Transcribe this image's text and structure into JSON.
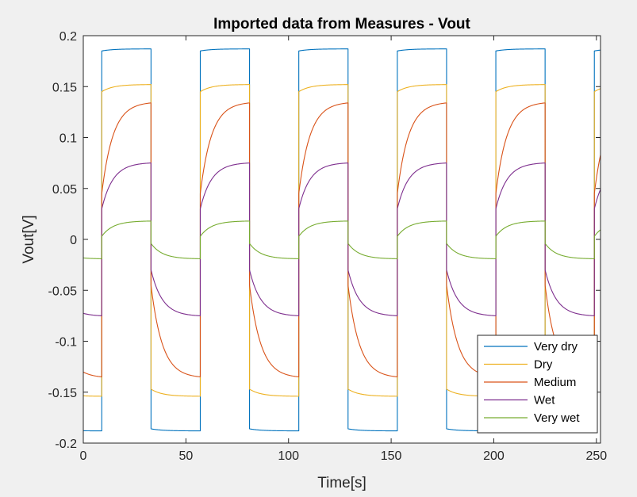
{
  "chart_data": {
    "type": "line",
    "title": "Imported data from Measures - Vout",
    "xlabel": "Time[s]",
    "ylabel": "Vout[V]",
    "xlim": [
      0,
      252
    ],
    "ylim": [
      -0.2,
      0.2
    ],
    "xticks": [
      0,
      50,
      100,
      150,
      200,
      250
    ],
    "xtick_labels": [
      "0",
      "50",
      "100",
      "150",
      "200",
      "250"
    ],
    "yticks": [
      -0.2,
      -0.15,
      -0.1,
      -0.05,
      0,
      0.05,
      0.1,
      0.15,
      0.2
    ],
    "ytick_labels": [
      "-0.2",
      "-0.15",
      "-0.1",
      "-0.05",
      "0",
      "0.05",
      "0.1",
      "0.15",
      "0.2"
    ],
    "grid": false,
    "legend_position": "bottom-right",
    "period_s": 48,
    "high_phase_start_s": 9,
    "low_phase_start_s": 33,
    "series": [
      {
        "name": "Very dry",
        "color": "#0072BD",
        "high_start": 0.185,
        "high_end": 0.187,
        "low_start": -0.186,
        "low_end": -0.188,
        "x": [
          0,
          8.5,
          9,
          32.5,
          33,
          56.5,
          57,
          80.5,
          81,
          104.5,
          105,
          128.5,
          129,
          152.5,
          153,
          176.5,
          177,
          200.5,
          201,
          224.5,
          225,
          248.5,
          249,
          252
        ],
        "y": [
          -0.188,
          -0.188,
          0.185,
          0.187,
          -0.186,
          -0.188,
          0.185,
          0.187,
          -0.186,
          -0.188,
          0.185,
          0.187,
          -0.186,
          -0.188,
          0.185,
          0.187,
          -0.186,
          -0.188,
          0.185,
          0.187,
          -0.186,
          -0.188,
          0.185,
          0.186
        ]
      },
      {
        "name": "Dry",
        "color": "#EDB120",
        "high_start": 0.145,
        "high_end": 0.152,
        "low_start": -0.147,
        "low_end": -0.154,
        "x": [
          0,
          8.5,
          9,
          32.5,
          33,
          56.5,
          57,
          80.5,
          81,
          104.5,
          105,
          128.5,
          129,
          152.5,
          153,
          176.5,
          177,
          200.5,
          201,
          224.5,
          225,
          248.5,
          249,
          252
        ],
        "y": [
          -0.153,
          -0.154,
          0.145,
          0.152,
          -0.147,
          -0.154,
          0.145,
          0.152,
          -0.147,
          -0.154,
          0.145,
          0.152,
          -0.147,
          -0.154,
          0.145,
          0.152,
          -0.147,
          -0.154,
          0.145,
          0.152,
          -0.147,
          -0.154,
          0.145,
          0.148
        ]
      },
      {
        "name": "Medium",
        "color": "#D95319",
        "high_start": 0.045,
        "high_end": 0.134,
        "low_start": -0.045,
        "low_end": -0.135,
        "x": [
          0,
          8.5,
          9,
          32.5,
          33,
          56.5,
          57,
          80.5,
          81,
          104.5,
          105,
          128.5,
          129,
          152.5,
          153,
          176.5,
          177,
          200.5,
          201,
          224.5,
          225,
          248.5,
          249,
          252
        ],
        "y": [
          -0.128,
          -0.135,
          0.045,
          0.134,
          -0.045,
          -0.135,
          0.045,
          0.134,
          -0.045,
          -0.135,
          0.045,
          0.134,
          -0.045,
          -0.135,
          0.045,
          0.134,
          -0.045,
          -0.135,
          0.045,
          0.134,
          -0.045,
          -0.135,
          0.045,
          0.075
        ]
      },
      {
        "name": "Wet",
        "color": "#7E2F8E",
        "high_start": 0.03,
        "high_end": 0.075,
        "low_start": -0.03,
        "low_end": -0.075,
        "x": [
          0,
          8.5,
          9,
          32.5,
          33,
          56.5,
          57,
          80.5,
          81,
          104.5,
          105,
          128.5,
          129,
          152.5,
          153,
          176.5,
          177,
          200.5,
          201,
          224.5,
          225,
          248.5,
          249,
          252
        ],
        "y": [
          -0.069,
          -0.075,
          0.03,
          0.075,
          -0.03,
          -0.075,
          0.03,
          0.075,
          -0.03,
          -0.075,
          0.03,
          0.075,
          -0.03,
          -0.075,
          0.03,
          0.075,
          -0.03,
          -0.075,
          0.03,
          0.075,
          -0.03,
          -0.075,
          0.03,
          0.05
        ]
      },
      {
        "name": "Very wet",
        "color": "#77AC30",
        "high_start": 0.003,
        "high_end": 0.018,
        "low_start": -0.004,
        "low_end": -0.019,
        "x": [
          0,
          8.5,
          9,
          32.5,
          33,
          56.5,
          57,
          80.5,
          81,
          104.5,
          105,
          128.5,
          129,
          152.5,
          153,
          176.5,
          177,
          200.5,
          201,
          224.5,
          225,
          248.5,
          249,
          252
        ],
        "y": [
          -0.016,
          -0.019,
          0.003,
          0.018,
          -0.004,
          -0.019,
          0.003,
          0.018,
          -0.004,
          -0.019,
          0.003,
          0.018,
          -0.004,
          -0.019,
          0.003,
          0.018,
          -0.004,
          -0.019,
          0.003,
          0.018,
          -0.004,
          -0.019,
          0.003,
          0.01
        ]
      }
    ]
  }
}
